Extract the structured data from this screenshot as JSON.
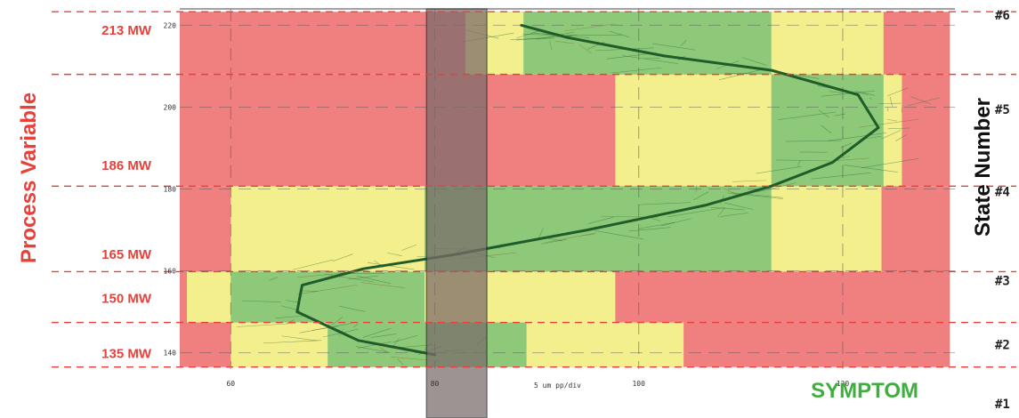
{
  "chart_data": {
    "type": "scatter",
    "x_scale_label": "5 um pp/div",
    "symptom_label": "SYMPTOM",
    "left_axis_title": "Process Variable",
    "right_axis_title": "State Number",
    "xlim": [
      55,
      131
    ],
    "ylim": [
      136,
      224
    ],
    "x_ticks": [
      60,
      80,
      100,
      120
    ],
    "y_ticks": [
      140,
      160,
      180,
      200,
      220
    ],
    "grid": true,
    "state_boundaries_y": [
      136.5,
      147.4,
      159.8,
      180.7,
      208.0,
      223.3
    ],
    "mw_labels": [
      {
        "text": "135 MW",
        "y": 140.0
      },
      {
        "text": "150 MW",
        "y": 153.5
      },
      {
        "text": "165 MW",
        "y": 164.3
      },
      {
        "text": "186 MW",
        "y": 186.0
      },
      {
        "text": "213 MW",
        "y": 219.0
      }
    ],
    "state_labels": [
      {
        "text": "#1",
        "y": 127.5
      },
      {
        "text": "#2",
        "y": 142.0
      },
      {
        "text": "#3",
        "y": 157.6
      },
      {
        "text": "#4",
        "y": 179.3
      },
      {
        "text": "#5",
        "y": 199.5
      },
      {
        "text": "#6",
        "y": 222.5
      }
    ],
    "zone_colors": {
      "red": "#f08080",
      "yellow": "#f4ef8d",
      "green": "#8ec97a"
    },
    "zones": [
      {
        "state": 2,
        "red": [
          55,
          130.5
        ],
        "yellow": [
          60,
          104.4
        ],
        "green": [
          69.5,
          89
        ]
      },
      {
        "state": 3,
        "red": [
          55,
          130.5
        ],
        "yellow": [
          55.7,
          97.7
        ],
        "green": [
          60,
          79
        ]
      },
      {
        "state": 4,
        "red": [
          55,
          130.5
        ],
        "yellow": [
          60,
          123.8
        ],
        "green": [
          79,
          113
        ]
      },
      {
        "state": 5,
        "red": [
          55,
          130.5
        ],
        "yellow": [
          97.7,
          125.8
        ],
        "green": [
          113,
          124
        ]
      },
      {
        "state": 6,
        "red": [
          55,
          130.5
        ],
        "yellow": [
          83,
          124
        ],
        "green": [
          88.7,
          113
        ]
      }
    ],
    "highlight_band_x": [
      79.2,
      85.1
    ],
    "highlight_band_color": "#7a6a6a",
    "centerline": {
      "color": "#1f5c2a",
      "points": [
        [
          80.0,
          139.5
        ],
        [
          72.5,
          143.0
        ],
        [
          66.5,
          150.0
        ],
        [
          67.0,
          156.5
        ],
        [
          73.0,
          160.5
        ],
        [
          82.0,
          164.0
        ],
        [
          95.0,
          170.0
        ],
        [
          106.5,
          176.0
        ],
        [
          113.0,
          180.7
        ],
        [
          119.0,
          186.5
        ],
        [
          123.5,
          195.0
        ],
        [
          121.5,
          203.0
        ],
        [
          113.0,
          209.0
        ],
        [
          102.5,
          212.5
        ],
        [
          93.0,
          217.0
        ],
        [
          88.5,
          220.0
        ]
      ]
    }
  }
}
